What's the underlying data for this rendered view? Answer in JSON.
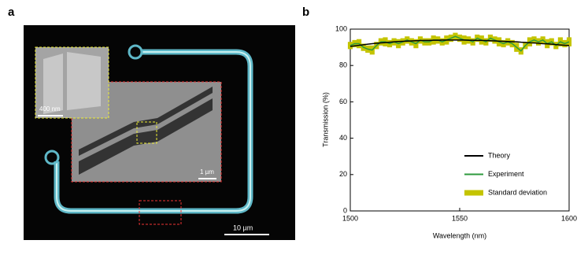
{
  "panel_labels": [
    "a",
    "b"
  ],
  "micrograph": {
    "scale_bars": [
      "400 nm",
      "1 µm",
      "10 µm"
    ]
  },
  "chart_data": {
    "type": "line",
    "xlabel": "Wavelength (nm)",
    "ylabel": "Transmission (%)",
    "xlim": [
      1500,
      1600
    ],
    "xticks": [
      1500,
      1550,
      1600
    ],
    "ylim": [
      0,
      100
    ],
    "yticks": [
      0,
      20,
      40,
      60,
      80,
      100
    ],
    "legend": "lower right",
    "x": [
      1500,
      1502,
      1504,
      1506,
      1508,
      1510,
      1512,
      1514,
      1516,
      1518,
      1520,
      1522,
      1524,
      1526,
      1528,
      1530,
      1532,
      1534,
      1536,
      1538,
      1540,
      1542,
      1544,
      1546,
      1548,
      1550,
      1552,
      1554,
      1556,
      1558,
      1560,
      1562,
      1564,
      1566,
      1568,
      1570,
      1572,
      1574,
      1576,
      1578,
      1580,
      1582,
      1584,
      1586,
      1588,
      1590,
      1592,
      1594,
      1596,
      1598,
      1600
    ],
    "series": [
      {
        "name": "Theory",
        "color": "#000000",
        "values": [
          90.5,
          90.8,
          91.1,
          91.4,
          91.7,
          92.0,
          92.2,
          92.4,
          92.6,
          92.8,
          93.0,
          93.2,
          93.3,
          93.4,
          93.5,
          93.6,
          93.7,
          93.8,
          93.8,
          93.9,
          93.9,
          94.0,
          94.0,
          94.0,
          94.0,
          94.0,
          94.0,
          93.9,
          93.9,
          93.8,
          93.8,
          93.7,
          93.6,
          93.5,
          93.4,
          93.3,
          93.2,
          93.1,
          93.0,
          92.8,
          92.7,
          92.5,
          92.4,
          92.2,
          92.0,
          91.9,
          91.7,
          91.5,
          91.3,
          91.1,
          91.0
        ]
      },
      {
        "name": "Experiment",
        "color": "#2e9a3c",
        "values": [
          91,
          92,
          92,
          90,
          89,
          88.5,
          91,
          93,
          93,
          92,
          93,
          92,
          93,
          94,
          93,
          92,
          94,
          93,
          93,
          94,
          94,
          93,
          94,
          95,
          96,
          95,
          94,
          94,
          93,
          95,
          94,
          93,
          95,
          94,
          93,
          92,
          93,
          92,
          90,
          88,
          91,
          93,
          94,
          93,
          94,
          92,
          93,
          91,
          93,
          92,
          93
        ]
      },
      {
        "name": "Standard deviation",
        "color": "#c4c400",
        "values": [
          2,
          2,
          2.5,
          2,
          2,
          2.5,
          2,
          2,
          2.5,
          2,
          2,
          2.5,
          2,
          2,
          2,
          2.5,
          2,
          2,
          2,
          2.5,
          2,
          2,
          2.5,
          2,
          2,
          2,
          2.5,
          2,
          2,
          2,
          2.5,
          2,
          2,
          2,
          2.5,
          2,
          2,
          2,
          2.5,
          2,
          2,
          2.5,
          2,
          2,
          2,
          2.5,
          2,
          2,
          2.5,
          2,
          2.5
        ]
      }
    ]
  }
}
